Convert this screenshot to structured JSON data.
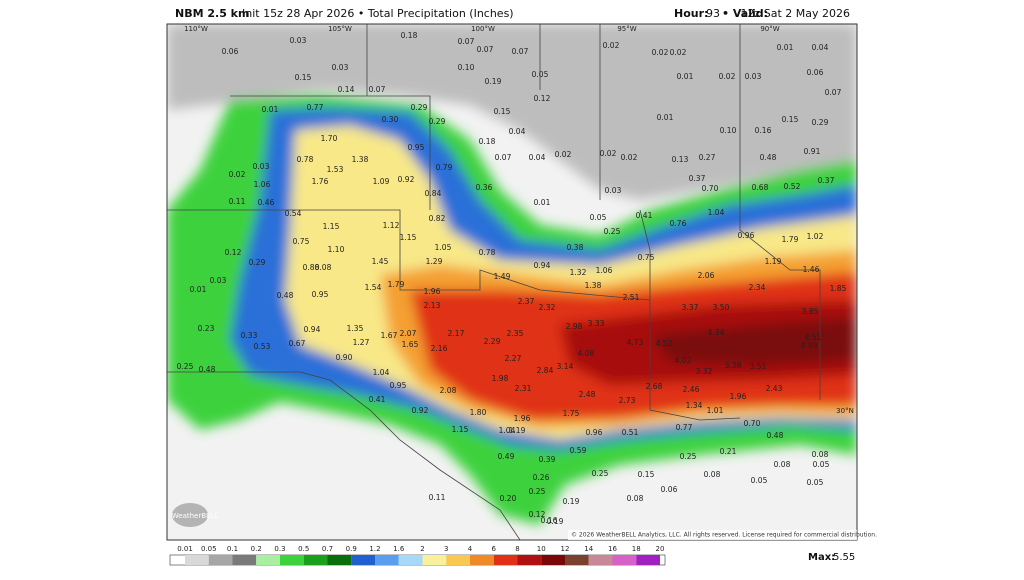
{
  "header": {
    "model": "NBM 2.5 km",
    "run": "Init 15z 28 Apr 2026 • Total Precipitation (Inches)",
    "hour_label": "Hour:",
    "hour": "93",
    "valid_label": "• Valid:",
    "valid": "12z Sat 2 May 2026"
  },
  "grid_labels": [
    "110°W",
    "105°W",
    "100°W",
    "95°W",
    "90°W",
    "30°N"
  ],
  "point_values": [
    "0.03",
    "0.06",
    "0.03",
    "0.15",
    "0.14",
    "0.07",
    "0.18",
    "0.07",
    "0.07",
    "0.07",
    "0.10",
    "0.19",
    "0.12",
    "0.05",
    "0.02",
    "0.02",
    "0.02",
    "0.01",
    "0.02",
    "0.03",
    "0.01",
    "0.04",
    "0.06",
    "0.07",
    "0.01",
    "0.77",
    "0.30",
    "0.29",
    "0.29",
    "0.15",
    "0.04",
    "0.01",
    "0.10",
    "0.16",
    "0.15",
    "0.29",
    "1.70",
    "1.38",
    "0.95",
    "0.79",
    "0.18",
    "0.07",
    "0.04",
    "0.02",
    "0.02",
    "0.02",
    "0.13",
    "0.27",
    "0.48",
    "0.91",
    "0.78",
    "1.53",
    "1.76",
    "1.09",
    "0.92",
    "0.84",
    "0.36",
    "0.01",
    "0.03",
    "0.37",
    "0.70",
    "0.68",
    "0.52",
    "0.37",
    "0.03",
    "1.06",
    "0.02",
    "0.11",
    "0.46",
    "0.54",
    "1.15",
    "1.12",
    "1.15",
    "0.82",
    "0.05",
    "0.25",
    "0.41",
    "0.76",
    "1.04",
    "0.96",
    "1.79",
    "1.02",
    "0.75",
    "1.10",
    "1.05",
    "0.78",
    "0.38",
    "0.75",
    "0.12",
    "0.29",
    "0.88",
    "0.08",
    "1.45",
    "1.29",
    "1.49",
    "0.94",
    "1.32",
    "1.06",
    "2.06",
    "1.19",
    "1.46",
    "0.03",
    "0.01",
    "0.48",
    "0.95",
    "1.54",
    "1.79",
    "1.96",
    "1.38",
    "2.37",
    "2.32",
    "2.51",
    "2.34",
    "1.85",
    "2.13",
    "3.37",
    "3.50",
    "3.85",
    "0.23",
    "0.94",
    "1.35",
    "1.67",
    "2.07",
    "2.17",
    "2.35",
    "2.98",
    "3.33",
    "4.34",
    "4.51",
    "4.99",
    "0.33",
    "0.53",
    "0.67",
    "1.27",
    "1.65",
    "2.16",
    "2.29",
    "4.08",
    "4.73",
    "4.52",
    "0.90",
    "2.27",
    "4.02",
    "3.32",
    "3.38",
    "3.51",
    "0.25",
    "0.48",
    "1.04",
    "0.95",
    "1.98",
    "2.84",
    "3.14",
    "2.68",
    "2.46",
    "2.43",
    "2.08",
    "2.31",
    "2.48",
    "2.73",
    "0.41",
    "0.92",
    "1.80",
    "1.75",
    "1.34",
    "1.01",
    "1.96",
    "0.70",
    "1.15",
    "1.04",
    "1.19",
    "1.96",
    "0.96",
    "0.77",
    "0.48",
    "0.49",
    "0.39",
    "0.26",
    "0.59",
    "0.51",
    "0.25",
    "0.15",
    "0.25",
    "0.21",
    "0.08",
    "0.08",
    "0.05",
    "0.08",
    "0.05",
    "0.06",
    "0.08",
    "0.05",
    "0.11",
    "0.20",
    "0.25",
    "0.19",
    "0.12",
    "0.16",
    "0.19"
  ],
  "legend": {
    "levels": [
      0.01,
      0.05,
      0.1,
      0.2,
      0.3,
      0.5,
      0.7,
      0.9,
      1.2,
      1.6,
      2,
      3,
      4,
      6,
      8,
      10,
      12,
      14,
      16,
      18,
      20
    ],
    "colors": [
      "#d9d9d9",
      "#a6a6a6",
      "#7a7a7a",
      "#a8f0a0",
      "#3cd23c",
      "#1aa01a",
      "#0a6e0a",
      "#1f5fd0",
      "#5a9ef0",
      "#a8d8f8",
      "#f8f09a",
      "#f8c850",
      "#f08a28",
      "#e03018",
      "#b01010",
      "#7a0808",
      "#7a4030",
      "#c88898",
      "#d860c8",
      "#a020c0"
    ]
  },
  "max_label": "Max:",
  "max_value": 5.55,
  "copyright": "© 2026 WeatherBELL Analytics, LLC. All rights reserved. License required for commercial distribution.",
  "watermark": "WeatherBELL"
}
